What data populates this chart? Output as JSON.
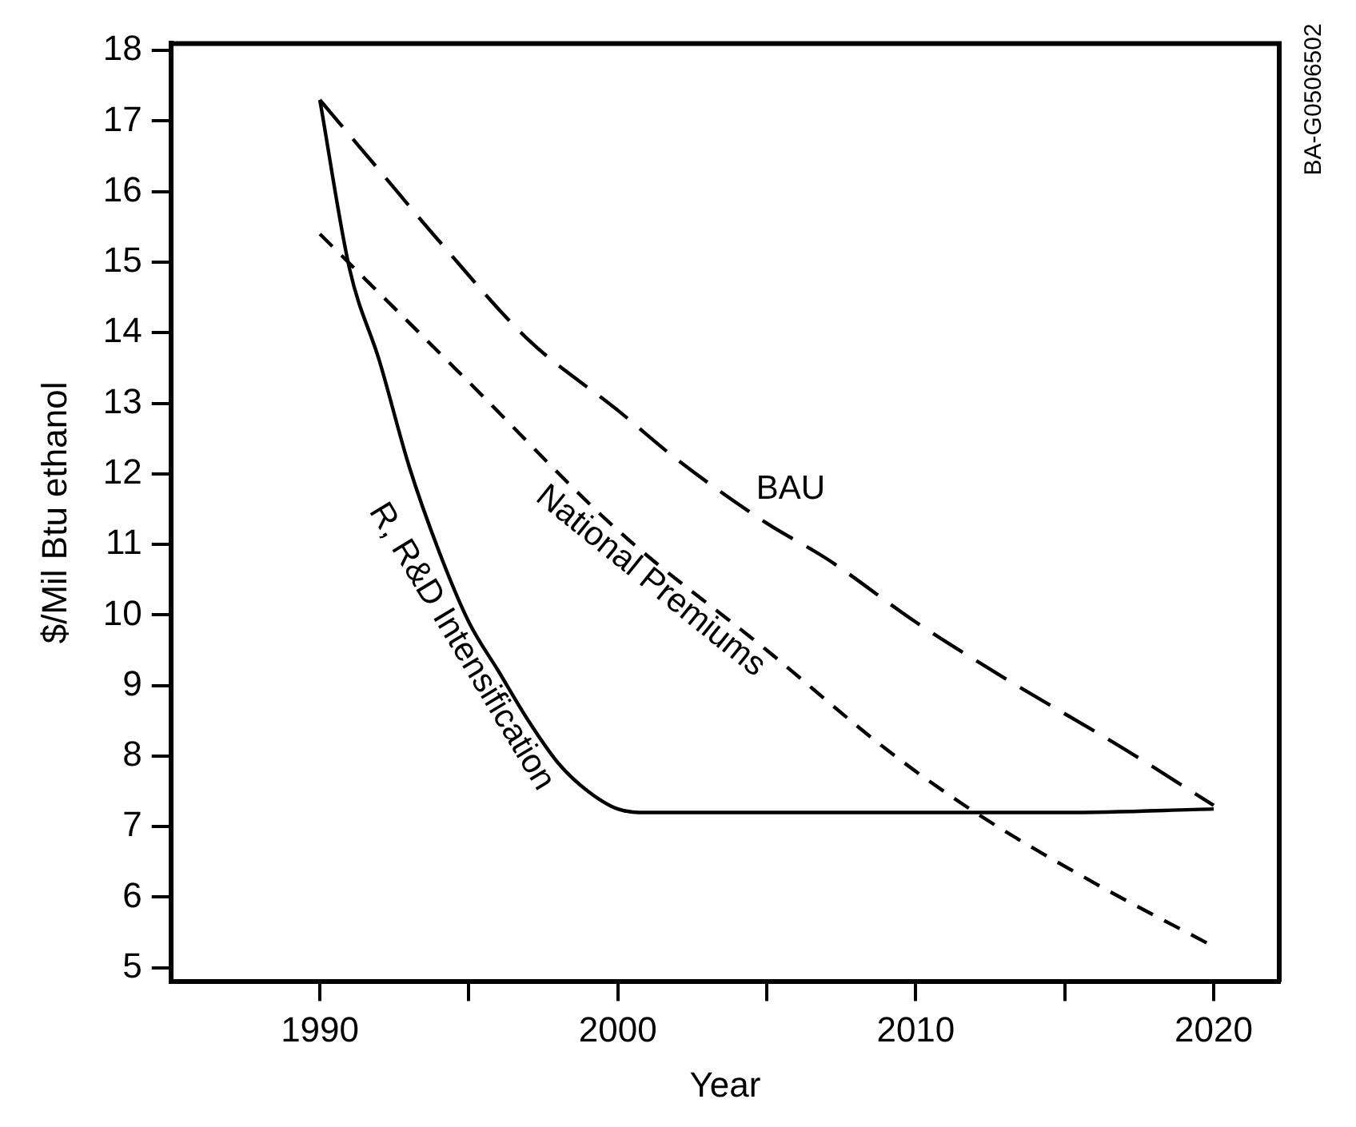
{
  "chart_data": {
    "type": "line",
    "xlabel": "Year",
    "ylabel": "$/Mil Btu ethanol",
    "xlim": [
      1985,
      2022.2
    ],
    "ylim": [
      4.8,
      18.1
    ],
    "xticks": [
      1990,
      {
        "value": 1995,
        "label": null
      },
      2000,
      {
        "value": 2005,
        "label": null
      },
      2010,
      {
        "value": 2015,
        "label": null
      },
      2020
    ],
    "yticks": [
      5,
      6,
      7,
      8,
      9,
      10,
      11,
      12,
      13,
      14,
      15,
      16,
      17,
      18
    ],
    "grid": false,
    "legend": false,
    "marker": "none",
    "series": [
      {
        "name": "BAU",
        "color": "#000000",
        "line_style": "dashed",
        "x": [
          1990,
          1992,
          1994,
          1997,
          2000,
          2002,
          2005,
          2007,
          2010,
          2013,
          2017,
          2020
        ],
        "values": [
          17.3,
          16.3,
          15.3,
          13.9,
          12.9,
          12.2,
          11.3,
          10.8,
          9.9,
          9.1,
          8.1,
          7.3
        ]
      },
      {
        "name": "National Premiums",
        "color": "#000000",
        "line_style": "dashed",
        "x": [
          1990,
          1995,
          2000,
          2005,
          2009,
          2012,
          2016,
          2020
        ],
        "values": [
          15.4,
          13.3,
          11.2,
          9.5,
          8.1,
          7.2,
          6.2,
          5.3
        ]
      },
      {
        "name": "R, R&D Intensification",
        "color": "#000000",
        "line_style": "solid",
        "x": [
          1990,
          1991,
          1992,
          1993,
          1994,
          1995,
          1996,
          1997,
          1998,
          1999,
          2000,
          2001,
          2005,
          2010,
          2015,
          2020
        ],
        "values": [
          17.3,
          14.9,
          13.6,
          12.1,
          10.9,
          9.9,
          9.2,
          8.5,
          7.9,
          7.5,
          7.25,
          7.2,
          7.2,
          7.2,
          7.2,
          7.25
        ]
      }
    ],
    "annotations": [
      "BA-G0506502"
    ]
  }
}
